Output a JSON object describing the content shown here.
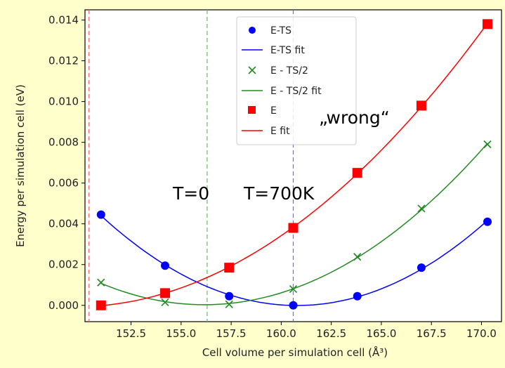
{
  "chart_data": {
    "type": "scatter",
    "title": "",
    "xlabel": "Cell volume per simulation cell (Å³)",
    "ylabel": "Energy per simulation cell (eV)",
    "xlim": [
      150.2,
      171.0
    ],
    "ylim": [
      -0.0008,
      0.0145
    ],
    "grid": false,
    "legend_placement": "upper-center",
    "x_ticks": [
      152.5,
      155.0,
      157.5,
      160.0,
      162.5,
      165.0,
      167.5,
      170.0
    ],
    "x_tick_labels": [
      "152.5",
      "155.0",
      "157.5",
      "160.0",
      "162.5",
      "165.0",
      "167.5",
      "170.0"
    ],
    "y_ticks": [
      0.0,
      0.002,
      0.004,
      0.006,
      0.008,
      0.01,
      0.012,
      0.014
    ],
    "y_tick_labels": [
      "0.000",
      "0.002",
      "0.004",
      "0.006",
      "0.008",
      "0.010",
      "0.012",
      "0.014"
    ],
    "series": [
      {
        "name": "E-TS",
        "fit_name": "E-TS fit",
        "marker": "circle",
        "color": "#0000ff",
        "x": [
          151.0,
          154.2,
          157.4,
          160.6,
          163.8,
          167.0,
          170.3
        ],
        "y": [
          0.00445,
          0.00195,
          0.00045,
          0.0,
          0.00045,
          0.00185,
          0.0041
        ]
      },
      {
        "name": "E - TS/2",
        "fit_name": "E - TS/2 fit",
        "marker": "x",
        "color": "#228b22",
        "x": [
          151.0,
          154.2,
          157.4,
          160.6,
          163.8,
          167.0,
          170.3
        ],
        "y": [
          0.00112,
          0.00015,
          5e-05,
          0.0008,
          0.00238,
          0.00475,
          0.0079
        ]
      },
      {
        "name": "E",
        "fit_name": "E fit",
        "marker": "square",
        "color": "#ff0000",
        "x": [
          151.0,
          154.2,
          157.4,
          160.6,
          163.8,
          167.0,
          170.3
        ],
        "y": [
          0.0,
          0.0006,
          0.00185,
          0.0038,
          0.0065,
          0.0098,
          0.0138
        ]
      }
    ],
    "vertical_lines": [
      {
        "x": 150.4,
        "color": "#ff6666"
      },
      {
        "x": 156.3,
        "color": "#66bb66"
      },
      {
        "x": 160.6,
        "color": "#6666ff"
      }
    ],
    "annotations": [
      {
        "text": "T=0",
        "x": 156.3,
        "y": 0.0058
      },
      {
        "text": "T=700K",
        "x": 160.6,
        "y": 0.0058
      },
      {
        "text": "„wrong“",
        "x": 163.5,
        "y": 0.0094
      }
    ]
  }
}
